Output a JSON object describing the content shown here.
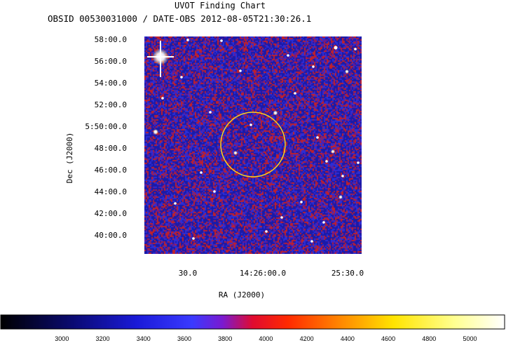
{
  "chart_data": {
    "type": "heatmap",
    "title": "UVOT Finding Chart",
    "subtitle": "OBSID 00530031000 / DATE-OBS 2012-08-05T21:30:26.1",
    "xlabel": "RA (J2000)",
    "ylabel": "Dec (J2000)",
    "x_ticks": [
      "30.0",
      "14:26:00.0",
      "25:30.0"
    ],
    "y_ticks": [
      "58:00.0",
      "56:00.0",
      "54:00.0",
      "52:00.0",
      "5:50:00.0",
      "48:00.0",
      "46:00.0",
      "44:00.0",
      "42:00.0",
      "40:00.0"
    ],
    "colorbar": {
      "ticks": [
        3000,
        3200,
        3400,
        3600,
        3800,
        4000,
        4200,
        4400,
        4600,
        4800,
        5000
      ],
      "range": [
        2700,
        5170
      ],
      "colormap": [
        "#000000",
        "#0000aa",
        "#2a2aff",
        "#7a00c8",
        "#ff0000",
        "#ff8800",
        "#ffee00",
        "#ffffff"
      ]
    },
    "colors": {
      "background_noise": [
        "#1a1aa8",
        "#2d2dd6",
        "#c0202a",
        "#6a1a90"
      ],
      "circle": "#ffd21a",
      "stars": "#ffffff"
    },
    "grid": false
  }
}
